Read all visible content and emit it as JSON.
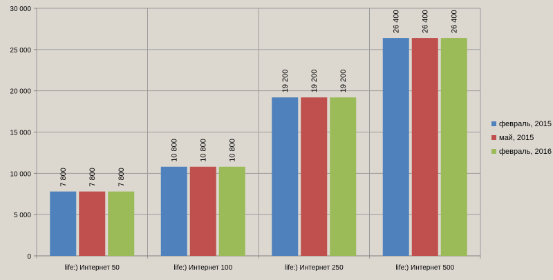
{
  "chart_data": {
    "type": "bar",
    "categories": [
      "life:) Интернет 50",
      "life:) Интернет 100",
      "life:) Интернет 250",
      "life:) Интернет 500"
    ],
    "series": [
      {
        "name": "февраль, 2015",
        "color": "#4f81bd",
        "values": [
          7800,
          10800,
          19200,
          26400
        ],
        "labels": [
          "7 800",
          "10 800",
          "19 200",
          "26 400"
        ]
      },
      {
        "name": "май, 2015",
        "color": "#c0504d",
        "values": [
          7800,
          10800,
          19200,
          26400
        ],
        "labels": [
          "7 800",
          "10 800",
          "19 200",
          "26 400"
        ]
      },
      {
        "name": "февраль, 2016",
        "color": "#9bbb59",
        "values": [
          7800,
          10800,
          19200,
          26400
        ],
        "labels": [
          "7 800",
          "10 800",
          "19 200",
          "26 400"
        ]
      }
    ],
    "yticks": [
      0,
      5000,
      10000,
      15000,
      20000,
      25000,
      30000
    ],
    "ytick_labels": [
      "0",
      "5 000",
      "10 000",
      "15 000",
      "20 000",
      "25 000",
      "30 000"
    ],
    "ylim": [
      0,
      30000
    ],
    "grid": true,
    "legend": "right"
  }
}
